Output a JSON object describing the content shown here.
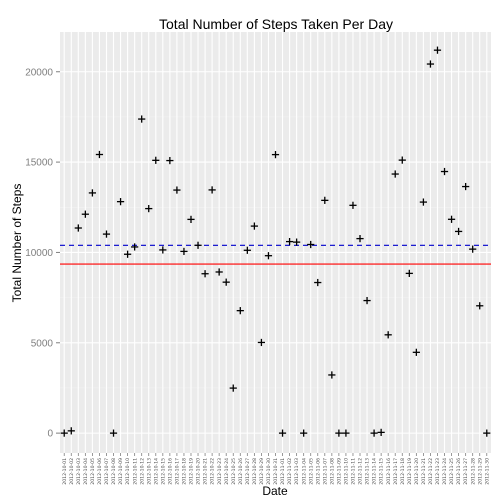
{
  "chart_data": {
    "type": "scatter",
    "title": "Total Number of Steps Taken Per Day",
    "xlabel": "Date",
    "ylabel": "Total Number of Steps",
    "ylim": [
      -1100,
      22200
    ],
    "yticks": [
      0,
      5000,
      10000,
      15000,
      20000
    ],
    "grid": true,
    "categories": [
      "2012-10-01",
      "2012-10-02",
      "2012-10-03",
      "2012-10-04",
      "2012-10-05",
      "2012-10-06",
      "2012-10-07",
      "2012-10-08",
      "2012-10-09",
      "2012-10-10",
      "2012-10-11",
      "2012-10-12",
      "2012-10-13",
      "2012-10-14",
      "2012-10-15",
      "2012-10-16",
      "2012-10-17",
      "2012-10-18",
      "2012-10-19",
      "2012-10-20",
      "2012-10-21",
      "2012-10-22",
      "2012-10-23",
      "2012-10-24",
      "2012-10-25",
      "2012-10-26",
      "2012-10-27",
      "2012-10-28",
      "2012-10-29",
      "2012-10-30",
      "2012-10-31",
      "2012-11-01",
      "2012-11-02",
      "2012-11-03",
      "2012-11-04",
      "2012-11-05",
      "2012-11-06",
      "2012-11-07",
      "2012-11-08",
      "2012-11-09",
      "2012-11-10",
      "2012-11-11",
      "2012-11-12",
      "2012-11-13",
      "2012-11-14",
      "2012-11-15",
      "2012-11-16",
      "2012-11-17",
      "2012-11-18",
      "2012-11-19",
      "2012-11-20",
      "2012-11-21",
      "2012-11-22",
      "2012-11-23",
      "2012-11-24",
      "2012-11-25",
      "2012-11-26",
      "2012-11-27",
      "2012-11-28",
      "2012-11-29",
      "2012-11-30"
    ],
    "values": [
      0,
      126,
      11352,
      12116,
      13294,
      15420,
      11015,
      0,
      12811,
      9900,
      10304,
      17382,
      12426,
      15098,
      10139,
      15084,
      13452,
      10056,
      11829,
      10395,
      8821,
      13460,
      8918,
      8355,
      2492,
      6778,
      10119,
      11458,
      5018,
      9819,
      15414,
      0,
      10600,
      10571,
      0,
      10439,
      8334,
      12883,
      3219,
      0,
      0,
      12608,
      10765,
      7336,
      0,
      41,
      5441,
      14339,
      15110,
      8841,
      4472,
      12787,
      20427,
      21194,
      14478,
      11834,
      11162,
      13646,
      10183,
      7047,
      0
    ],
    "reference_lines": [
      {
        "value": 10395,
        "color": "#0000cc",
        "style": "dashed"
      },
      {
        "value": 9354,
        "color": "#ff0000",
        "style": "solid"
      }
    ],
    "colors": {
      "panel": "#ebebeb",
      "grid_major": "#ffffff",
      "grid_minor": "#f2f2f2",
      "marker": "#000000",
      "tick_text": "#7f7f7f"
    }
  }
}
